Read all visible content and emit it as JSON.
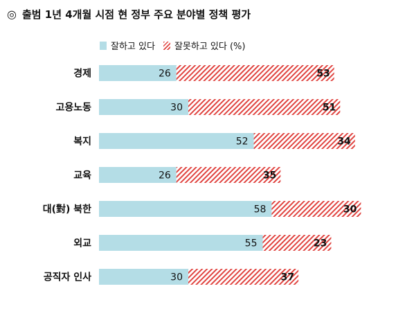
{
  "title": {
    "marker": "◎",
    "text": "출범 1년 4개월 시점 현 정부 주요 분야별 정책 평가"
  },
  "colors": {
    "good": "#b4dde6",
    "bad": "#e0433f"
  },
  "chart_data": {
    "type": "bar",
    "orientation": "horizontal",
    "stacked": true,
    "categories": [
      "경제",
      "고용노동",
      "복지",
      "교육",
      "대(對) 북한",
      "외교",
      "공직자 인사"
    ],
    "series": [
      {
        "name": "잘하고 있다",
        "values": [
          26,
          30,
          52,
          26,
          58,
          55,
          30
        ]
      },
      {
        "name": "잘못하고 있다 (%)",
        "values": [
          53,
          51,
          34,
          35,
          30,
          23,
          37
        ]
      }
    ],
    "xlim": [
      0,
      100
    ],
    "grid": false,
    "legend_position": "top"
  }
}
